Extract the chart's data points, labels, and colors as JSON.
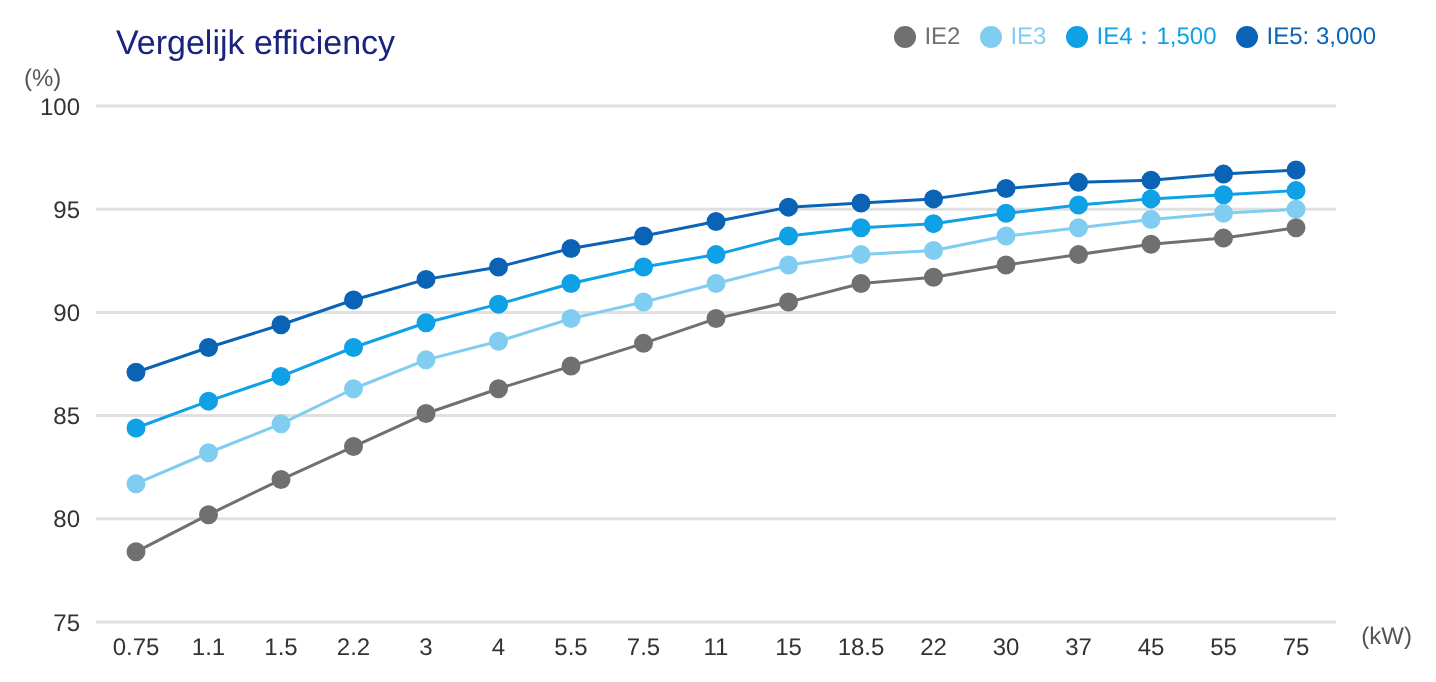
{
  "chart_data": {
    "type": "line",
    "title": "Vergelijk efficiency",
    "xlabel": "(kW)",
    "ylabel": "(%)",
    "categories": [
      "0.75",
      "1.1",
      "1.5",
      "2.2",
      "3",
      "4",
      "5.5",
      "7.5",
      "11",
      "15",
      "18.5",
      "22",
      "30",
      "37",
      "45",
      "55",
      "75"
    ],
    "series": [
      {
        "name": "IE5: 3,000",
        "color": "#0a63b5",
        "values": [
          87.1,
          88.3,
          89.4,
          90.6,
          91.6,
          92.2,
          93.1,
          93.7,
          94.4,
          95.1,
          95.3,
          95.5,
          96.0,
          96.3,
          96.4,
          96.7,
          96.9
        ]
      },
      {
        "name": "IE4：1,500",
        "color": "#0ea1e6",
        "values": [
          84.4,
          85.7,
          86.9,
          88.3,
          89.5,
          90.4,
          91.4,
          92.2,
          92.8,
          93.7,
          94.1,
          94.3,
          94.8,
          95.2,
          95.5,
          95.7,
          95.9
        ]
      },
      {
        "name": "IE3",
        "color": "#80cdf1",
        "values": [
          81.7,
          83.2,
          84.6,
          86.3,
          87.7,
          88.6,
          89.7,
          90.5,
          91.4,
          92.3,
          92.8,
          93.0,
          93.7,
          94.1,
          94.5,
          94.8,
          95.0
        ]
      },
      {
        "name": "IE2",
        "color": "#707070",
        "values": [
          78.4,
          80.2,
          81.9,
          83.5,
          85.1,
          86.3,
          87.4,
          88.5,
          89.7,
          90.5,
          91.4,
          91.7,
          92.3,
          92.8,
          93.3,
          93.6,
          94.1
        ]
      }
    ],
    "ylim": [
      75,
      100
    ],
    "yticks": [
      75,
      80,
      85,
      90,
      95,
      100
    ],
    "grid": "y",
    "legend": "top right",
    "marker": "circle",
    "line_style": "solid"
  }
}
